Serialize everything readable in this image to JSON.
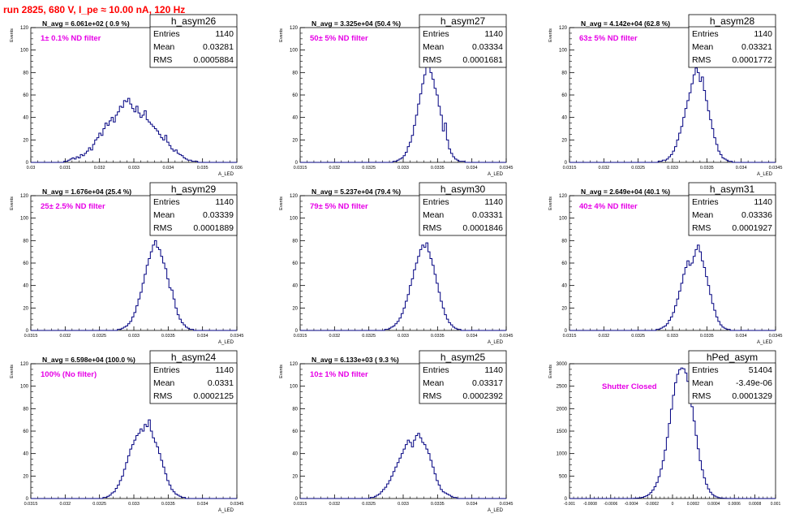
{
  "page_title": "run 2825,   680 V, I_pe ≈ 10.00 nA, 120 Hz",
  "colors": {
    "title": "#ff0000",
    "histogram_line": "#000080",
    "annotation_filter": "#e600e6",
    "annotation_navg": "#000000"
  },
  "chart_data": [
    {
      "type": "histogram",
      "name": "h_asym26",
      "n_avg": "N_avg = 6.061e+02 ( 0.9 %)",
      "filter_label": "1± 0.1% ND filter",
      "stats": {
        "entries": "1140",
        "mean": "0.03281",
        "rms": "0.0005884"
      },
      "stats_labels": {
        "entries": "Entries",
        "mean": "Mean",
        "rms": "RMS"
      },
      "xlabel": "A_LED",
      "ylabel": "Events",
      "xlim": [
        0.03,
        0.036
      ],
      "ylim": [
        0,
        120
      ],
      "xticks": [
        "0.03",
        "0.031",
        "0.032",
        "0.033",
        "0.034",
        "0.035",
        "0.036"
      ],
      "yticks": [
        "0",
        "20",
        "40",
        "60",
        "80",
        "100",
        "120"
      ],
      "bin_count": 100,
      "values": [
        0,
        0,
        0,
        0,
        0,
        0,
        0,
        0,
        0,
        0,
        0,
        0,
        0,
        0,
        0,
        0,
        1,
        1,
        2,
        3,
        4,
        3,
        5,
        4,
        7,
        6,
        8,
        10,
        13,
        11,
        16,
        20,
        22,
        26,
        24,
        30,
        35,
        33,
        37,
        40,
        36,
        42,
        45,
        50,
        49,
        55,
        54,
        57,
        52,
        48,
        45,
        50,
        44,
        40,
        42,
        46,
        38,
        36,
        34,
        32,
        30,
        28,
        25,
        22,
        20,
        24,
        18,
        15,
        12,
        10,
        11,
        8,
        7,
        6,
        4,
        3,
        2,
        2,
        1,
        1,
        1,
        0,
        0,
        0,
        0,
        0,
        0,
        0,
        0,
        0,
        0,
        0,
        0,
        0,
        0,
        0,
        0,
        0,
        0,
        0
      ]
    },
    {
      "type": "histogram",
      "name": "h_asym27",
      "n_avg": "N_avg = 3.325e+04 (50.4 %)",
      "filter_label": "50± 5% ND filter",
      "stats": {
        "entries": "1140",
        "mean": "0.03334",
        "rms": "0.0001681"
      },
      "stats_labels": {
        "entries": "Entries",
        "mean": "Mean",
        "rms": "RMS"
      },
      "xlabel": "A_LED",
      "ylabel": "Events",
      "xlim": [
        0.0315,
        0.0345
      ],
      "ylim": [
        0,
        120
      ],
      "xticks": [
        "0.0315",
        "0.032",
        "0.0325",
        "0.033",
        "0.0335",
        "0.034",
        "0.0345"
      ],
      "yticks": [
        "0",
        "20",
        "40",
        "60",
        "80",
        "100",
        "120"
      ],
      "bin_count": 100,
      "values": [
        0,
        0,
        0,
        0,
        0,
        0,
        0,
        0,
        0,
        0,
        0,
        0,
        0,
        0,
        0,
        0,
        0,
        0,
        0,
        0,
        0,
        0,
        0,
        0,
        0,
        0,
        0,
        0,
        0,
        0,
        0,
        0,
        0,
        0,
        0,
        0,
        0,
        0,
        0,
        0,
        0,
        0,
        0,
        0,
        0,
        1,
        1,
        2,
        3,
        4,
        6,
        9,
        14,
        18,
        24,
        33,
        42,
        52,
        61,
        70,
        78,
        88,
        85,
        80,
        74,
        66,
        60,
        50,
        42,
        28,
        35,
        20,
        12,
        8,
        5,
        3,
        2,
        1,
        1,
        1,
        0,
        0,
        0,
        0,
        0,
        0,
        0,
        0,
        0,
        0,
        0,
        0,
        0,
        0,
        0,
        0,
        0,
        0,
        0,
        0
      ]
    },
    {
      "type": "histogram",
      "name": "h_asym28",
      "n_avg": "N_avg = 4.142e+04 (62.8 %)",
      "filter_label": "63± 5% ND filter",
      "stats": {
        "entries": "1140",
        "mean": "0.03321",
        "rms": "0.0001772"
      },
      "stats_labels": {
        "entries": "Entries",
        "mean": "Mean",
        "rms": "RMS"
      },
      "xlabel": "A_LED",
      "ylabel": "Events",
      "xlim": [
        0.0315,
        0.0345
      ],
      "ylim": [
        0,
        120
      ],
      "xticks": [
        "0.0315",
        "0.032",
        "0.0325",
        "0.033",
        "0.0335",
        "0.034",
        "0.0345"
      ],
      "yticks": [
        "0",
        "20",
        "40",
        "60",
        "80",
        "100",
        "120"
      ],
      "bin_count": 100,
      "values": [
        0,
        0,
        0,
        0,
        0,
        0,
        0,
        0,
        0,
        0,
        0,
        0,
        0,
        0,
        0,
        0,
        0,
        0,
        0,
        0,
        0,
        0,
        0,
        0,
        0,
        0,
        0,
        0,
        0,
        0,
        0,
        0,
        0,
        0,
        0,
        0,
        0,
        0,
        0,
        0,
        0,
        0,
        0,
        1,
        1,
        2,
        2,
        3,
        5,
        7,
        10,
        14,
        20,
        26,
        32,
        40,
        48,
        55,
        62,
        70,
        78,
        84,
        80,
        72,
        76,
        64,
        55,
        46,
        38,
        30,
        22,
        16,
        10,
        7,
        4,
        3,
        2,
        1,
        1,
        0,
        0,
        0,
        0,
        0,
        0,
        0,
        0,
        0,
        0,
        0,
        0,
        0,
        0,
        0,
        0,
        0,
        0,
        0,
        0,
        0
      ]
    },
    {
      "type": "histogram",
      "name": "h_asym29",
      "n_avg": "N_avg = 1.676e+04 (25.4 %)",
      "filter_label": "25± 2.5% ND filter",
      "stats": {
        "entries": "1140",
        "mean": "0.03339",
        "rms": "0.0001889"
      },
      "stats_labels": {
        "entries": "Entries",
        "mean": "Mean",
        "rms": "RMS"
      },
      "xlabel": "A_LED",
      "ylabel": "Events",
      "xlim": [
        0.0315,
        0.0345
      ],
      "ylim": [
        0,
        120
      ],
      "xticks": [
        "0.0315",
        "0.032",
        "0.0325",
        "0.033",
        "0.0335",
        "0.034",
        "0.0345"
      ],
      "yticks": [
        "0",
        "20",
        "40",
        "60",
        "80",
        "100",
        "120"
      ],
      "bin_count": 100,
      "values": [
        0,
        0,
        0,
        0,
        0,
        0,
        0,
        0,
        0,
        0,
        0,
        0,
        0,
        0,
        0,
        0,
        0,
        0,
        0,
        0,
        0,
        0,
        0,
        0,
        0,
        0,
        0,
        0,
        0,
        0,
        0,
        0,
        0,
        0,
        0,
        0,
        0,
        0,
        0,
        0,
        0,
        0,
        1,
        1,
        2,
        3,
        4,
        6,
        8,
        12,
        16,
        22,
        28,
        34,
        42,
        50,
        58,
        64,
        70,
        76,
        80,
        74,
        72,
        66,
        60,
        55,
        46,
        38,
        36,
        28,
        20,
        14,
        10,
        7,
        5,
        3,
        2,
        1,
        1,
        0,
        0,
        0,
        0,
        0,
        0,
        0,
        0,
        0,
        0,
        0,
        0,
        0,
        0,
        0,
        0,
        0,
        0,
        0,
        0,
        0
      ]
    },
    {
      "type": "histogram",
      "name": "h_asym30",
      "n_avg": "N_avg = 5.237e+04 (79.4 %)",
      "filter_label": "79± 5% ND filter",
      "stats": {
        "entries": "1140",
        "mean": "0.03331",
        "rms": "0.0001846"
      },
      "stats_labels": {
        "entries": "Entries",
        "mean": "Mean",
        "rms": "RMS"
      },
      "xlabel": "A_LED",
      "ylabel": "Events",
      "xlim": [
        0.0315,
        0.0345
      ],
      "ylim": [
        0,
        120
      ],
      "xticks": [
        "0.0315",
        "0.032",
        "0.0325",
        "0.033",
        "0.0335",
        "0.034",
        "0.0345"
      ],
      "yticks": [
        "0",
        "20",
        "40",
        "60",
        "80",
        "100",
        "120"
      ],
      "bin_count": 100,
      "values": [
        0,
        0,
        0,
        0,
        0,
        0,
        0,
        0,
        0,
        0,
        0,
        0,
        0,
        0,
        0,
        0,
        0,
        0,
        0,
        0,
        0,
        0,
        0,
        0,
        0,
        0,
        0,
        0,
        0,
        0,
        0,
        0,
        0,
        0,
        0,
        0,
        0,
        0,
        0,
        0,
        0,
        1,
        1,
        2,
        3,
        4,
        6,
        8,
        11,
        15,
        20,
        26,
        32,
        40,
        46,
        54,
        60,
        66,
        72,
        76,
        74,
        78,
        70,
        64,
        58,
        50,
        42,
        34,
        26,
        20,
        14,
        10,
        7,
        5,
        3,
        2,
        1,
        1,
        0,
        0,
        0,
        0,
        0,
        0,
        0,
        0,
        0,
        0,
        0,
        0,
        0,
        0,
        0,
        0,
        0,
        0,
        0,
        0,
        0,
        0
      ]
    },
    {
      "type": "histogram",
      "name": "h_asym31",
      "n_avg": "N_avg = 2.649e+04 (40.1 %)",
      "filter_label": "40± 4% ND filter",
      "stats": {
        "entries": "1140",
        "mean": "0.03336",
        "rms": "0.0001927"
      },
      "stats_labels": {
        "entries": "Entries",
        "mean": "Mean",
        "rms": "RMS"
      },
      "xlabel": "A_LED",
      "ylabel": "Events",
      "xlim": [
        0.0315,
        0.0345
      ],
      "ylim": [
        0,
        120
      ],
      "xticks": [
        "0.0315",
        "0.032",
        "0.0325",
        "0.033",
        "0.0335",
        "0.034",
        "0.0345"
      ],
      "yticks": [
        "0",
        "20",
        "40",
        "60",
        "80",
        "100",
        "120"
      ],
      "bin_count": 100,
      "values": [
        0,
        0,
        0,
        0,
        0,
        0,
        0,
        0,
        0,
        0,
        0,
        0,
        0,
        0,
        0,
        0,
        0,
        0,
        0,
        0,
        0,
        0,
        0,
        0,
        0,
        0,
        0,
        0,
        0,
        0,
        0,
        0,
        0,
        0,
        0,
        0,
        0,
        0,
        0,
        0,
        0,
        0,
        1,
        1,
        2,
        3,
        4,
        6,
        9,
        12,
        16,
        22,
        28,
        35,
        42,
        50,
        56,
        62,
        58,
        60,
        66,
        72,
        76,
        70,
        62,
        56,
        48,
        40,
        32,
        24,
        18,
        12,
        8,
        5,
        3,
        2,
        1,
        1,
        0,
        0,
        0,
        0,
        0,
        0,
        0,
        0,
        0,
        0,
        0,
        0,
        0,
        0,
        0,
        0,
        0,
        0,
        0,
        0,
        0,
        0
      ]
    },
    {
      "type": "histogram",
      "name": "h_asym24",
      "n_avg": "N_avg = 6.598e+04 (100.0 %)",
      "filter_label": "100% (No filter)",
      "stats": {
        "entries": "1140",
        "mean": "0.0331",
        "rms": "0.0002125"
      },
      "stats_labels": {
        "entries": "Entries",
        "mean": "Mean",
        "rms": "RMS"
      },
      "xlabel": "A_LED",
      "ylabel": "Events",
      "xlim": [
        0.0315,
        0.0345
      ],
      "ylim": [
        0,
        120
      ],
      "xticks": [
        "0.0315",
        "0.032",
        "0.0325",
        "0.033",
        "0.0335",
        "0.034",
        "0.0345"
      ],
      "yticks": [
        "0",
        "20",
        "40",
        "60",
        "80",
        "100",
        "120"
      ],
      "bin_count": 100,
      "values": [
        0,
        0,
        0,
        0,
        0,
        0,
        0,
        0,
        0,
        0,
        0,
        0,
        0,
        0,
        0,
        0,
        0,
        0,
        0,
        0,
        0,
        0,
        0,
        0,
        0,
        0,
        0,
        0,
        0,
        0,
        0,
        0,
        0,
        0,
        0,
        1,
        1,
        2,
        3,
        5,
        6,
        9,
        12,
        16,
        20,
        26,
        32,
        38,
        44,
        48,
        52,
        56,
        58,
        62,
        60,
        66,
        64,
        70,
        60,
        54,
        50,
        46,
        40,
        34,
        28,
        22,
        16,
        12,
        8,
        6,
        4,
        3,
        2,
        1,
        1,
        0,
        0,
        0,
        0,
        0,
        0,
        0,
        0,
        0,
        0,
        0,
        0,
        0,
        0,
        0,
        0,
        0,
        0,
        0,
        0,
        0,
        0,
        0,
        0,
        0
      ]
    },
    {
      "type": "histogram",
      "name": "h_asym25",
      "n_avg": "N_avg = 6.133e+03 ( 9.3 %)",
      "filter_label": "10± 1% ND filter",
      "stats": {
        "entries": "1140",
        "mean": "0.03317",
        "rms": "0.0002392"
      },
      "stats_labels": {
        "entries": "Entries",
        "mean": "Mean",
        "rms": "RMS"
      },
      "xlabel": "A_LED",
      "ylabel": "Events",
      "xlim": [
        0.0315,
        0.0345
      ],
      "ylim": [
        0,
        120
      ],
      "xticks": [
        "0.0315",
        "0.032",
        "0.0325",
        "0.033",
        "0.0335",
        "0.034",
        "0.0345"
      ],
      "yticks": [
        "0",
        "20",
        "40",
        "60",
        "80",
        "100",
        "120"
      ],
      "bin_count": 100,
      "values": [
        0,
        0,
        0,
        0,
        0,
        0,
        0,
        0,
        0,
        0,
        0,
        0,
        0,
        0,
        0,
        0,
        0,
        0,
        0,
        0,
        0,
        0,
        0,
        0,
        0,
        0,
        0,
        0,
        0,
        0,
        0,
        0,
        0,
        0,
        1,
        1,
        2,
        3,
        4,
        6,
        8,
        10,
        13,
        16,
        20,
        24,
        28,
        32,
        36,
        40,
        44,
        48,
        52,
        50,
        46,
        52,
        56,
        58,
        54,
        50,
        48,
        44,
        40,
        34,
        28,
        22,
        16,
        12,
        8,
        6,
        5,
        4,
        3,
        2,
        1,
        1,
        0,
        0,
        0,
        0,
        0,
        0,
        0,
        0,
        0,
        0,
        0,
        0,
        0,
        0,
        0,
        0,
        0,
        0,
        0,
        0,
        0,
        0,
        0,
        0
      ]
    },
    {
      "type": "histogram",
      "name": "hPed_asym",
      "n_avg": "",
      "filter_label": "Shutter Closed",
      "stats": {
        "entries": "51404",
        "mean": "-3.49e-06",
        "rms": "0.0001329"
      },
      "stats_labels": {
        "entries": "Entries",
        "mean": "Mean",
        "rms": "RMS"
      },
      "xlabel": "",
      "ylabel": "Events",
      "xlim": [
        -0.001,
        0.001
      ],
      "ylim": [
        0,
        3200
      ],
      "xticks": [
        "-0.001",
        "-0.0008",
        "-0.0006",
        "-0.0004",
        "-0.0002",
        "0",
        "0.0002",
        "0.0004",
        "0.0006",
        "0.0008",
        "0.001"
      ],
      "yticks": [
        "0",
        "500",
        "1000",
        "1500",
        "2000",
        "2500",
        "3000"
      ],
      "bin_count": 100,
      "values": [
        0,
        0,
        0,
        0,
        0,
        0,
        0,
        0,
        0,
        0,
        0,
        0,
        0,
        0,
        0,
        0,
        0,
        0,
        0,
        0,
        0,
        0,
        0,
        0,
        0,
        0,
        0,
        0,
        0,
        0,
        0,
        5,
        8,
        12,
        20,
        30,
        45,
        65,
        95,
        140,
        200,
        280,
        380,
        520,
        700,
        900,
        1150,
        1450,
        1780,
        2120,
        2450,
        2750,
        2950,
        3060,
        3100,
        3080,
        2980,
        2780,
        2500,
        2180,
        1840,
        1500,
        1180,
        900,
        680,
        490,
        340,
        230,
        150,
        95,
        60,
        38,
        22,
        13,
        8,
        5,
        3,
        1,
        0,
        0,
        0,
        0,
        0,
        0,
        0,
        0,
        0,
        0,
        0,
        0,
        0,
        0,
        0,
        0,
        0,
        0,
        0,
        0,
        0,
        0
      ]
    }
  ]
}
